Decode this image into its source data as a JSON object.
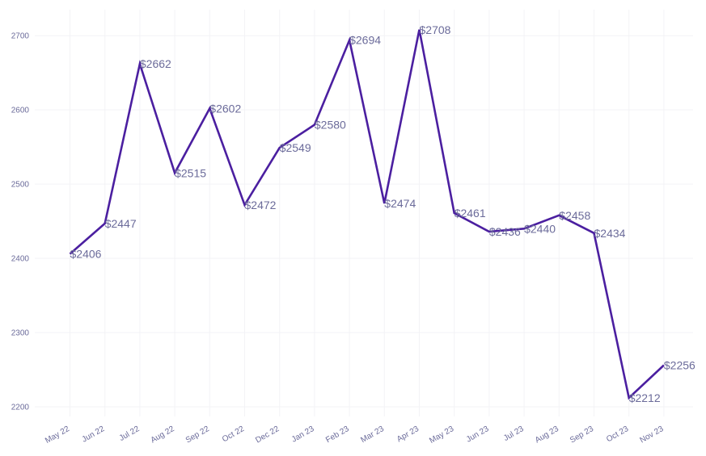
{
  "chart_data": {
    "type": "line",
    "title": "",
    "xlabel": "",
    "ylabel": "",
    "categories": [
      "May 22",
      "Jun 22",
      "Jul 22",
      "Aug 22",
      "Sep 22",
      "Oct 22",
      "Dec 22",
      "Jan 23",
      "Feb 23",
      "Mar 23",
      "Apr 23",
      "May 23",
      "Jun 23",
      "Jul 23",
      "Aug 23",
      "Sep 23",
      "Oct 23",
      "Nov 23"
    ],
    "values": [
      2406,
      2447,
      2662,
      2515,
      2602,
      2472,
      2549,
      2580,
      2694,
      2474,
      2708,
      2461,
      2436,
      2440,
      2458,
      2434,
      2212,
      2256
    ],
    "data_labels": [
      "$2406",
      "$2447",
      "$2662",
      "$2515",
      "$2602",
      "$2472",
      "$2549",
      "$2580",
      "$2694",
      "$2474",
      "$2708",
      "$2461",
      "$2436",
      "$2440",
      "$2458",
      "$2434",
      "$2212",
      "$2256"
    ],
    "yticks": [
      2200,
      2300,
      2400,
      2500,
      2600,
      2700
    ],
    "ylim": [
      2187,
      2735
    ],
    "grid": true,
    "legend": "none",
    "line_color": "#4b1fa0",
    "text_color": "#6b6b9a"
  }
}
